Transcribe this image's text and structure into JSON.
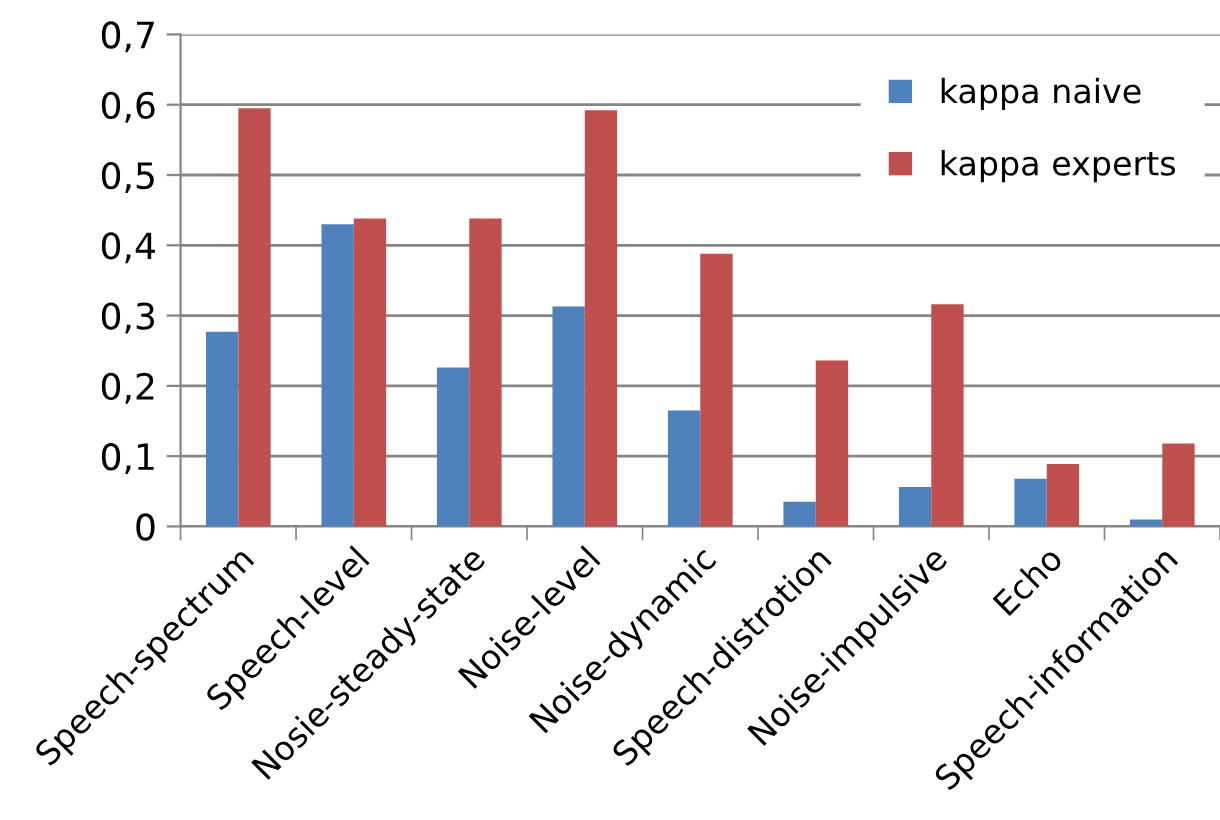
{
  "chart_data": {
    "type": "bar",
    "categories": [
      "Speech-spectrum",
      "Speech-level",
      "Nosie-steady-state",
      "Noise-level",
      "Noise-dynamic",
      "Speech-distrotion",
      "Noise-impulsive",
      "Echo",
      "Speech-information"
    ],
    "series": [
      {
        "name": "kappa naive",
        "color": "#4f81bd",
        "values": [
          0.277,
          0.43,
          0.226,
          0.313,
          0.165,
          0.035,
          0.056,
          0.068,
          0.01
        ]
      },
      {
        "name": "kappa experts",
        "color": "#c0504d",
        "values": [
          0.595,
          0.438,
          0.438,
          0.592,
          0.388,
          0.236,
          0.316,
          0.089,
          0.118
        ]
      }
    ],
    "ylim": [
      0,
      0.7
    ],
    "yticks": [
      0,
      {
        "value": 0.1,
        "label": "0,1"
      },
      {
        "value": 0.2,
        "label": "0,2"
      },
      {
        "value": 0.3,
        "label": "0,3"
      },
      {
        "value": 0.4,
        "label": "0,4"
      },
      {
        "value": 0.5,
        "label": "0,5"
      },
      {
        "value": 0.6,
        "label": "0,6"
      },
      {
        "value": 0.7,
        "label": "0,7"
      }
    ],
    "grid": "y",
    "legend": "top right"
  }
}
